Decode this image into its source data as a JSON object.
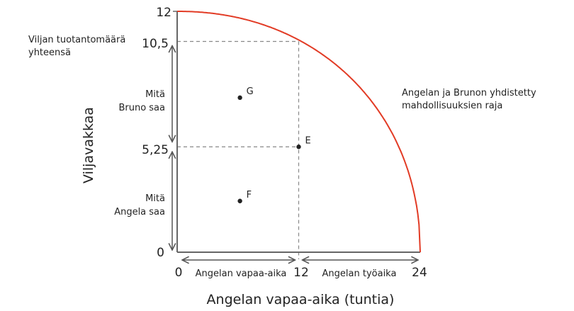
{
  "chart_data": {
    "type": "line",
    "xlabel": "Angelan vapaa-aika (tuntia)",
    "ylabel": "Viljavakkaa",
    "xlim": [
      0,
      24
    ],
    "ylim": [
      0,
      12
    ],
    "x_ticks": [
      "0",
      "12",
      "24"
    ],
    "y_ticks": [
      "0",
      "5,25",
      "10,5",
      "12"
    ],
    "y_tick_values": [
      0,
      5.25,
      10.5,
      12
    ],
    "x_tick_values": [
      0,
      12,
      24
    ],
    "grid": false,
    "curve_color": "#e23b25",
    "frontier": {
      "x_intercept": 24,
      "y_intercept": 12,
      "passes_through": [
        12,
        10.5
      ]
    },
    "points": [
      {
        "label": "G",
        "x": 6.2,
        "y": 7.7
      },
      {
        "label": "E",
        "x": 12,
        "y": 5.25
      },
      {
        "label": "F",
        "x": 6.2,
        "y": 2.55
      }
    ],
    "annotations": {
      "total": [
        "Viljan tuotantomäärä",
        "yhteensä"
      ],
      "bruno": [
        "Mitä",
        "Bruno saa"
      ],
      "angela": [
        "Mitä",
        "Angela saa"
      ],
      "frontier": [
        "Angelan ja Brunon yhdistetty",
        "mahdollisuuksien raja"
      ],
      "leisure": "Angelan vapaa-aika",
      "work": "Angelan työaika"
    }
  }
}
